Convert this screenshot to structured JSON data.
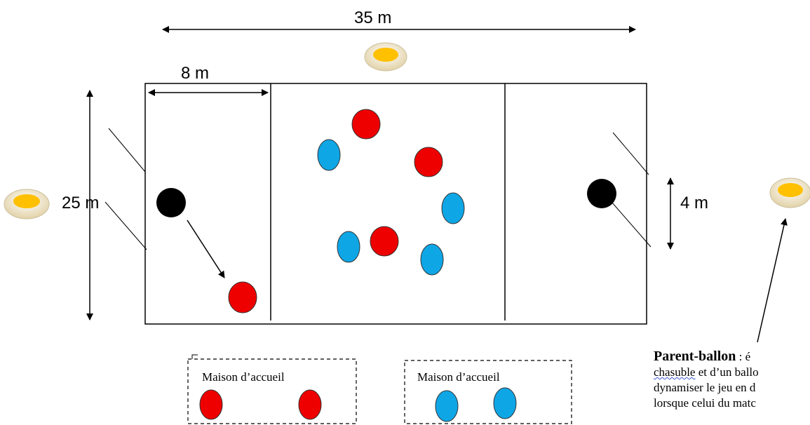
{
  "dimensions": {
    "width": "35 m",
    "section": "8 m",
    "height": "25 m",
    "goal": "4 m"
  },
  "houses": [
    {
      "label": "Maison d’accueil",
      "team": "red"
    },
    {
      "label": "Maison d’accueil",
      "team": "blue"
    }
  ],
  "parent_ballon": {
    "title": "Parent-ballon",
    "line1_rest": " : é",
    "line2_word": "chasuble",
    "line2_rest": " et d’un ballo",
    "line3": "dynamiser le jeu en d",
    "line4": "lorsque celui du matc"
  },
  "colors": {
    "red": "#ee0000",
    "blue": "#0fa6e6",
    "black": "#000000",
    "disc_outer": "#f4e8c8",
    "disc_inner": "#ffc000"
  }
}
